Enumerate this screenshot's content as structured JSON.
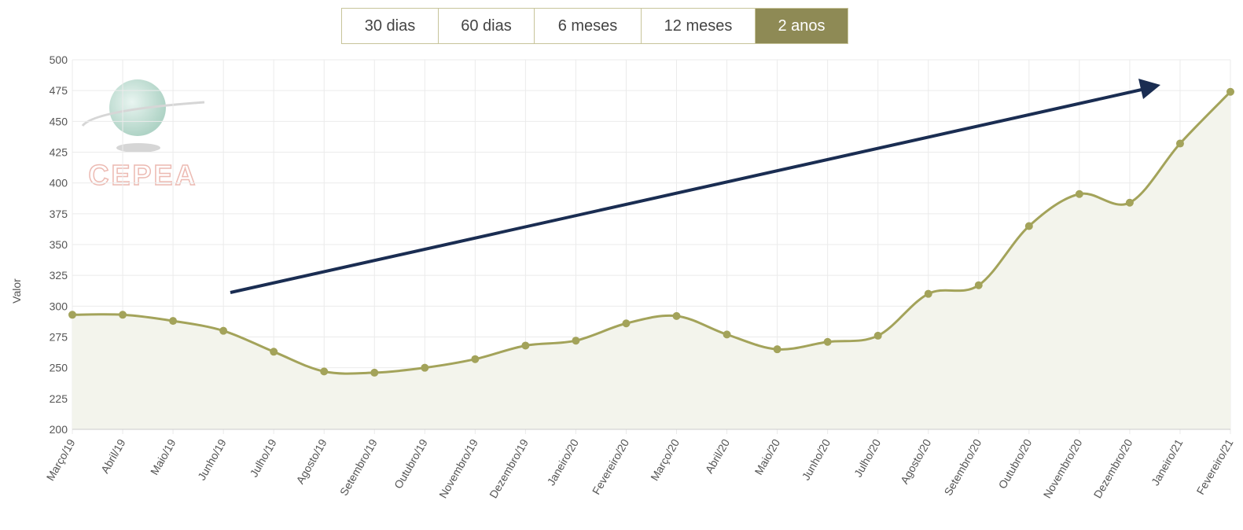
{
  "buttons": [
    "30 dias",
    "60 dias",
    "6 meses",
    "12 meses",
    "2 anos"
  ],
  "active_button": 4,
  "logo": "CEPEA",
  "chart_data": {
    "type": "line",
    "y_label": "Valor",
    "categories": [
      "Março/19",
      "Abril/19",
      "Maio/19",
      "Junho/19",
      "Julho/19",
      "Agosto/19",
      "Setembro/19",
      "Outubro/19",
      "Novembro/19",
      "Dezembro/19",
      "Janeiro/20",
      "Fevereiro/20",
      "Março/20",
      "Abril/20",
      "Maio/20",
      "Junho/20",
      "Julho/20",
      "Agosto/20",
      "Setembro/20",
      "Outubro/20",
      "Novembro/20",
      "Dezembro/20",
      "Janeiro/21",
      "Fevereiro/21"
    ],
    "values": [
      293,
      293,
      288,
      280,
      263,
      247,
      246,
      250,
      257,
      268,
      272,
      286,
      292,
      277,
      265,
      271,
      276,
      310,
      317,
      365,
      391,
      384,
      432,
      474
    ],
    "color": "#a3a35a",
    "ylim": [
      200,
      500
    ],
    "yticks": [
      200,
      225,
      250,
      275,
      300,
      325,
      350,
      375,
      400,
      425,
      450,
      475,
      500
    ],
    "grid": true
  }
}
